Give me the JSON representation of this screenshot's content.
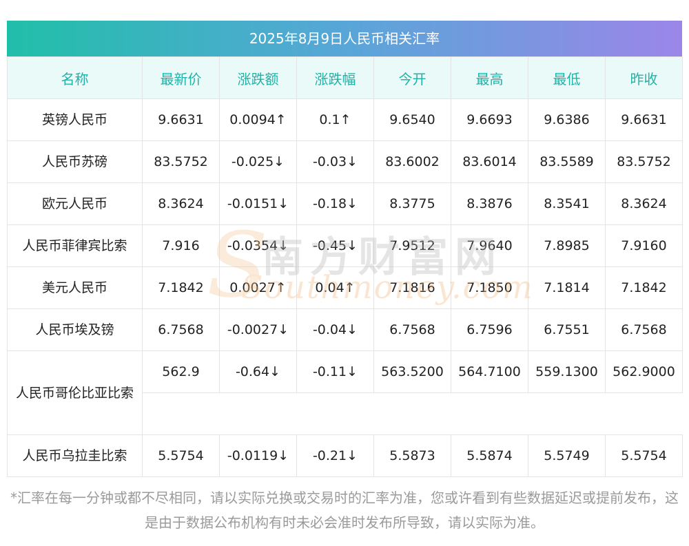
{
  "title": "2025年8月9日人民币相关汇率",
  "headers": [
    "名称",
    "最新价",
    "涨跌额",
    "涨跌幅",
    "今开",
    "最高",
    "最低",
    "昨收"
  ],
  "rows": [
    {
      "name": "英镑人民币",
      "latest": "9.6631",
      "change": "0.0094↑",
      "pct": "0.1↑",
      "open": "9.6540",
      "high": "9.6693",
      "low": "9.6386",
      "prev": "9.6631",
      "dir": "up"
    },
    {
      "name": "人民币苏磅",
      "latest": "83.5752",
      "change": "-0.025↓",
      "pct": "-0.03↓",
      "open": "83.6002",
      "high": "83.6014",
      "low": "83.5589",
      "prev": "83.5752",
      "dir": "down"
    },
    {
      "name": "欧元人民币",
      "latest": "8.3624",
      "change": "-0.0151↓",
      "pct": "-0.18↓",
      "open": "8.3775",
      "high": "8.3876",
      "low": "8.3541",
      "prev": "8.3624",
      "dir": "down"
    },
    {
      "name": "人民币菲律宾比索",
      "latest": "7.916",
      "change": "-0.0354↓",
      "pct": "-0.45↓",
      "open": "7.9512",
      "high": "7.9640",
      "low": "7.8985",
      "prev": "7.9160",
      "dir": "down"
    },
    {
      "name": "美元人民币",
      "latest": "7.1842",
      "change": "0.0027↑",
      "pct": "0.04↑",
      "open": "7.1816",
      "high": "7.1850",
      "low": "7.1814",
      "prev": "7.1842",
      "dir": "up"
    },
    {
      "name": "人民币埃及镑",
      "latest": "6.7568",
      "change": "-0.0027↓",
      "pct": "-0.04↓",
      "open": "6.7568",
      "high": "6.7596",
      "low": "6.7551",
      "prev": "6.7568",
      "dir": "down"
    },
    {
      "name": "人民币哥伦比亚比索",
      "latest": "562.9",
      "change": "-0.64↓",
      "pct": "-0.11↓",
      "open": "563.5200",
      "high": "564.7100",
      "low": "559.1300",
      "prev": "562.9000",
      "dir": "down"
    },
    {
      "name": "人民币乌拉圭比索",
      "latest": "5.5754",
      "change": "-0.0119↓",
      "pct": "-0.21↓",
      "open": "5.5873",
      "high": "5.5874",
      "low": "5.5749",
      "prev": "5.5754",
      "dir": "down"
    }
  ],
  "colors": {
    "up": "#e0221f",
    "down": "#1a8a25",
    "header_text": "#1fb3a8"
  },
  "watermark": {
    "cn": "南方财富网",
    "en": "Southmoney.com"
  },
  "note": "*汇率在每一分钟或都不尽相同，请以实际兑换或交易时的汇率为准，您或许看到有些数据延迟或提前发布，这是由于数据公布机构有时未必会准时发布所导致，请以实际为准。"
}
